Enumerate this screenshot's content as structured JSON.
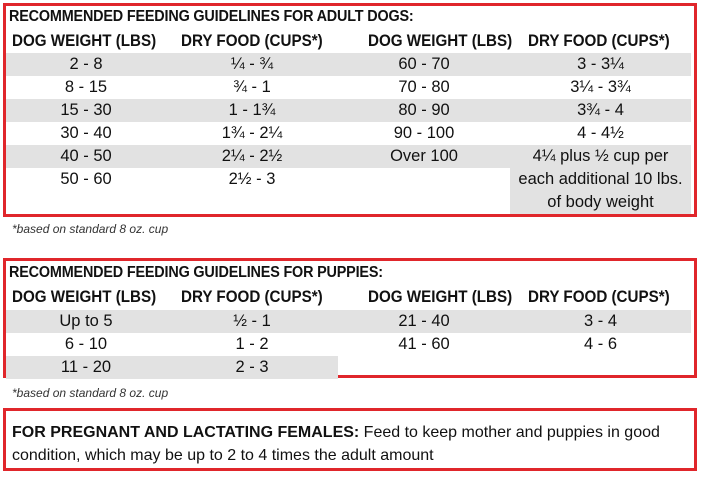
{
  "adult": {
    "title": "RECOMMENDED FEEDING GUIDELINES FOR ADULT DOGS:",
    "headers": [
      "DOG WEIGHT (LBS)",
      "DRY FOOD (CUPS*)",
      "DOG WEIGHT (LBS)",
      "DRY FOOD (CUPS*)"
    ],
    "rows": [
      [
        "2 - 8",
        "¼ - ¾",
        "60 - 70",
        "3 - 3¼"
      ],
      [
        "8 - 15",
        "¾ - 1",
        "70 - 80",
        "3¼ - 3¾"
      ],
      [
        "15 - 30",
        "1 - 1¾",
        "80 - 90",
        "3¾ - 4"
      ],
      [
        "30 - 40",
        "1¾ - 2¼",
        "90 - 100",
        "4 - 4½"
      ],
      [
        "40 - 50",
        "2¼ - 2½",
        "Over 100",
        "4¼ plus ½ cup per"
      ],
      [
        "50 - 60",
        "2½ - 3",
        "",
        ""
      ]
    ],
    "extra_lines": [
      "each additional 10 lbs.",
      "of body weight"
    ],
    "note": "*based on standard 8 oz. cup"
  },
  "puppies": {
    "title": "RECOMMENDED FEEDING GUIDELINES FOR PUPPIES:",
    "headers": [
      "DOG WEIGHT (LBS)",
      "DRY FOOD (CUPS*)",
      "DOG WEIGHT (LBS)",
      "DRY FOOD (CUPS*)"
    ],
    "rows": [
      [
        "Up to 5",
        "½ - 1",
        "21 - 40",
        "3 - 4"
      ],
      [
        "6 - 10",
        "1 - 2",
        "41 - 60",
        "4 - 6"
      ],
      [
        "11 - 20",
        "2 - 3",
        "",
        ""
      ]
    ],
    "note": "*based on standard 8 oz. cup"
  },
  "pregnant": {
    "label": "FOR PREGNANT AND LACTATING FEMALES:",
    "text": " Feed to keep mother and puppies in good condition, which may be up to 2 to 4 times the adult amount"
  },
  "colors": {
    "border": "#e0262b",
    "shade": "#e2e2e2"
  }
}
